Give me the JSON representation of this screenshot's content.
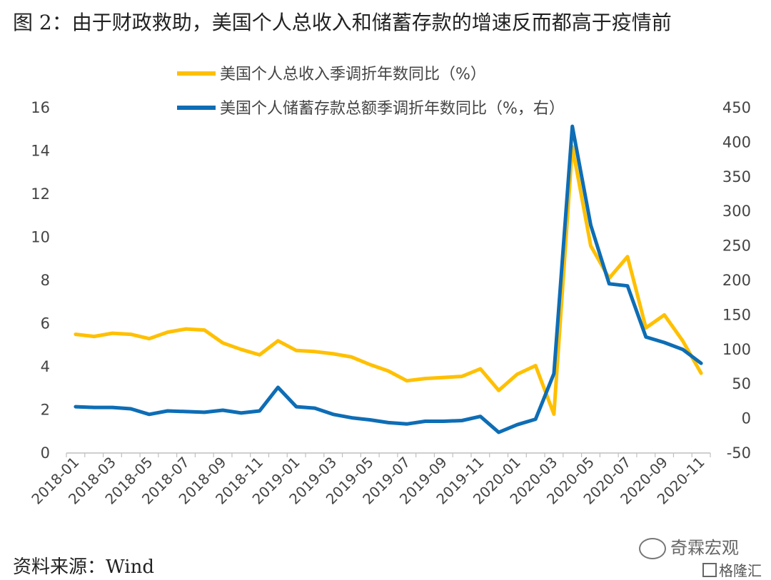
{
  "header": {
    "title": "图 2：由于财政救助，美国个人总收入和储蓄存款的增速反而都高于疫情前"
  },
  "footer": {
    "source": "资料来源：Wind"
  },
  "watermark": {
    "primary": "奇霖宏观",
    "secondary": "格隆汇"
  },
  "chart_data": {
    "type": "line",
    "title": "",
    "xlabel": "",
    "ylabel": "",
    "ylim": [
      0,
      16
    ],
    "y2lim": [
      -50,
      450
    ],
    "grid": false,
    "legend_position": "top",
    "y_ticks": [
      "0",
      "2",
      "4",
      "6",
      "8",
      "10",
      "12",
      "14",
      "16"
    ],
    "y2_ticks": [
      "-50",
      "0",
      "50",
      "100",
      "150",
      "200",
      "250",
      "300",
      "350",
      "400",
      "450"
    ],
    "x_tick_labels": [
      "2018-01",
      "2018-03",
      "2018-05",
      "2018-07",
      "2018-09",
      "2018-11",
      "2019-01",
      "2019-03",
      "2019-05",
      "2019-07",
      "2019-09",
      "2019-11",
      "2020-01",
      "2020-03",
      "2020-05",
      "2020-07",
      "2020-09",
      "2020-11"
    ],
    "categories": [
      "2018-01",
      "2018-02",
      "2018-03",
      "2018-04",
      "2018-05",
      "2018-06",
      "2018-07",
      "2018-08",
      "2018-09",
      "2018-10",
      "2018-11",
      "2018-12",
      "2019-01",
      "2019-02",
      "2019-03",
      "2019-04",
      "2019-05",
      "2019-06",
      "2019-07",
      "2019-08",
      "2019-09",
      "2019-10",
      "2019-11",
      "2019-12",
      "2020-01",
      "2020-02",
      "2020-03",
      "2020-04",
      "2020-05",
      "2020-06",
      "2020-07",
      "2020-08",
      "2020-09",
      "2020-10",
      "2020-11"
    ],
    "series": [
      {
        "name": "美国个人总收入季调折年数同比（%）",
        "axis": "left",
        "color": "#FFC000",
        "values": [
          5.5,
          5.4,
          5.55,
          5.5,
          5.3,
          5.6,
          5.75,
          5.7,
          5.1,
          4.8,
          4.55,
          5.2,
          4.75,
          4.7,
          4.6,
          4.45,
          4.1,
          3.8,
          3.35,
          3.45,
          3.5,
          3.55,
          3.9,
          2.9,
          3.65,
          4.05,
          1.8,
          14.2,
          9.6,
          8.1,
          9.1,
          5.8,
          6.4,
          5.2,
          3.7
        ]
      },
      {
        "name": "美国个人储蓄存款总额季调折年数同比（%，右）",
        "axis": "right",
        "color": "#0E6DB5",
        "values": [
          17,
          16,
          16,
          14,
          6,
          11,
          10,
          9,
          12,
          8,
          11,
          45,
          17,
          15,
          6,
          1,
          -2,
          -6,
          -8,
          -4,
          -4,
          -3,
          3,
          -20,
          -9,
          -1,
          65,
          423,
          280,
          195,
          192,
          118,
          110,
          100,
          80
        ]
      }
    ]
  }
}
